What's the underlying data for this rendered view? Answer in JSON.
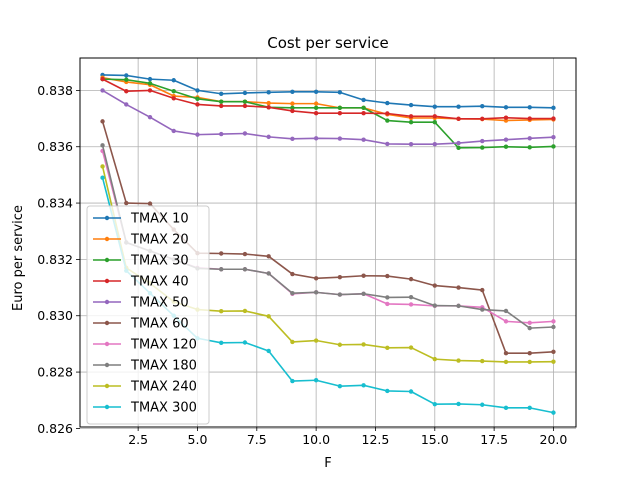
{
  "chart_data": {
    "type": "line",
    "title": "Cost per service",
    "xlabel": "F",
    "ylabel": "Euro per service",
    "xlim": [
      0.05,
      20.95
    ],
    "ylim": [
      0.82605,
      0.83915
    ],
    "xticks": [
      2.5,
      5.0,
      7.5,
      10.0,
      12.5,
      15.0,
      17.5,
      20.0
    ],
    "yticks": [
      0.826,
      0.828,
      0.83,
      0.832,
      0.834,
      0.836,
      0.838
    ],
    "grid": true,
    "legend_position": "left",
    "x": [
      1,
      2,
      3,
      4,
      5,
      6,
      7,
      8,
      9,
      10,
      11,
      12,
      13,
      14,
      15,
      16,
      17,
      18,
      19,
      20
    ],
    "series": [
      {
        "name": "TMAX 10",
        "color": "#1f77b4",
        "values": [
          0.83855,
          0.83853,
          0.8384,
          0.83836,
          0.838,
          0.83788,
          0.83791,
          0.83793,
          0.83795,
          0.83795,
          0.83793,
          0.83766,
          0.83755,
          0.83748,
          0.83742,
          0.83742,
          0.83744,
          0.8374,
          0.8374,
          0.83738
        ]
      },
      {
        "name": "TMAX 20",
        "color": "#ff7f0e",
        "values": [
          0.83845,
          0.8383,
          0.8382,
          0.8378,
          0.83775,
          0.8376,
          0.8376,
          0.83755,
          0.83753,
          0.83753,
          0.83738,
          0.83738,
          0.83715,
          0.83702,
          0.83702,
          0.83699,
          0.83698,
          0.83693,
          0.83695,
          0.83697
        ]
      },
      {
        "name": "TMAX 30",
        "color": "#2ca02c",
        "values": [
          0.8384,
          0.83838,
          0.83825,
          0.83797,
          0.8377,
          0.8376,
          0.8376,
          0.8374,
          0.83738,
          0.83738,
          0.83738,
          0.83738,
          0.83693,
          0.83687,
          0.83687,
          0.83596,
          0.83597,
          0.836,
          0.83598,
          0.83601
        ]
      },
      {
        "name": "TMAX 40",
        "color": "#d62728",
        "values": [
          0.8384,
          0.83797,
          0.838,
          0.83772,
          0.8375,
          0.83745,
          0.83745,
          0.8374,
          0.83727,
          0.83719,
          0.83719,
          0.83719,
          0.83718,
          0.83708,
          0.83708,
          0.83699,
          0.83699,
          0.83703,
          0.837,
          0.837
        ]
      },
      {
        "name": "TMAX 50",
        "color": "#9467bd",
        "values": [
          0.838,
          0.8375,
          0.83705,
          0.83656,
          0.83643,
          0.83645,
          0.83647,
          0.83635,
          0.83628,
          0.8363,
          0.83629,
          0.83625,
          0.8361,
          0.83609,
          0.83609,
          0.83613,
          0.8362,
          0.83625,
          0.8363,
          0.83634
        ]
      },
      {
        "name": "TMAX 60",
        "color": "#8c564b",
        "values": [
          0.8369,
          0.834,
          0.83398,
          0.83306,
          0.83222,
          0.83221,
          0.83219,
          0.83211,
          0.83148,
          0.83133,
          0.83137,
          0.83142,
          0.83141,
          0.8313,
          0.83107,
          0.831,
          0.83091,
          0.82867,
          0.82867,
          0.82872
        ]
      },
      {
        "name": "TMAX 120",
        "color": "#e377c2",
        "values": [
          0.83585,
          0.8326,
          0.8323,
          0.832,
          0.8317,
          0.83165,
          0.83165,
          0.8315,
          0.83078,
          0.83083,
          0.83075,
          0.83078,
          0.83042,
          0.8304,
          0.83035,
          0.83035,
          0.8303,
          0.8298,
          0.82975,
          0.8298
        ]
      },
      {
        "name": "TMAX 180",
        "color": "#7f7f7f",
        "values": [
          0.83605,
          0.8326,
          0.8323,
          0.832,
          0.83168,
          0.83165,
          0.83165,
          0.8315,
          0.8308,
          0.83083,
          0.83075,
          0.83078,
          0.83065,
          0.83066,
          0.83036,
          0.83035,
          0.83022,
          0.83017,
          0.82956,
          0.8296
        ]
      },
      {
        "name": "TMAX 240",
        "color": "#bcbd22",
        "values": [
          0.8353,
          0.8317,
          0.83115,
          0.8305,
          0.83022,
          0.83016,
          0.83017,
          0.82998,
          0.82907,
          0.82912,
          0.82897,
          0.82898,
          0.82886,
          0.82887,
          0.82846,
          0.82841,
          0.82839,
          0.82836,
          0.82836,
          0.82837
        ]
      },
      {
        "name": "TMAX 300",
        "color": "#17becf",
        "values": [
          0.8349,
          0.8316,
          0.8308,
          0.83,
          0.8292,
          0.82904,
          0.82905,
          0.82875,
          0.82768,
          0.82771,
          0.8275,
          0.82753,
          0.82733,
          0.82731,
          0.82686,
          0.82687,
          0.82684,
          0.82673,
          0.82673,
          0.82656
        ]
      }
    ]
  }
}
